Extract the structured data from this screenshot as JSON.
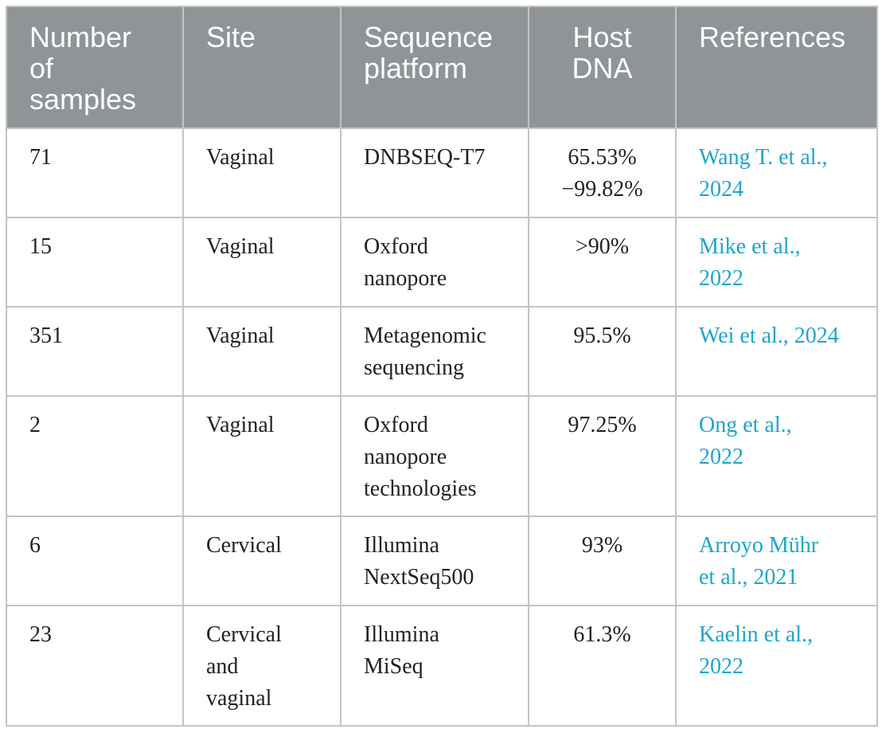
{
  "table": {
    "headers": [
      "Number\nof\nsamples",
      "Site",
      "Sequence\nplatform",
      "Host\nDNA",
      "References"
    ],
    "rows": [
      {
        "samples": "71",
        "site": "Vaginal",
        "platform": "DNBSEQ-T7",
        "host_dna": "65.53%\n−99.82%",
        "reference": "Wang T. et al.,\n2024"
      },
      {
        "samples": "15",
        "site": "Vaginal",
        "platform": "Oxford\nnanopore",
        "host_dna": ">90%",
        "reference": "Mike et al.,\n2022"
      },
      {
        "samples": "351",
        "site": "Vaginal",
        "platform": "Metagenomic\nsequencing",
        "host_dna": "95.5%",
        "reference": "Wei et al., 2024"
      },
      {
        "samples": "2",
        "site": "Vaginal",
        "platform": "Oxford\nnanopore\ntechnologies",
        "host_dna": "97.25%",
        "reference": "Ong et al.,\n2022"
      },
      {
        "samples": "6",
        "site": "Cervical",
        "platform": "Illumina\nNextSeq500",
        "host_dna": "93%",
        "reference": "Arroyo Mühr\net al., 2021"
      },
      {
        "samples": "23",
        "site": "Cervical\nand\nvaginal",
        "platform": "Illumina\nMiSeq",
        "host_dna": "61.3%",
        "reference": "Kaelin et al.,\n2022"
      }
    ]
  }
}
